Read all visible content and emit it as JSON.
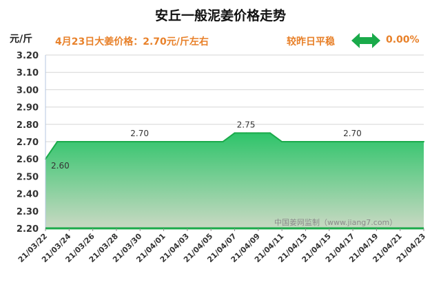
{
  "header": {
    "title": "安丘一般泥姜价格走势",
    "unit": "元/斤",
    "price_note": "4月23日大姜价格：2.70元/斤左右",
    "compare_label": "较昨日平稳",
    "change_value": "0.00%",
    "trend_icon": "double-arrow-icon",
    "trend_color": "#1aaa4a"
  },
  "watermark": "中国姜网监制（www.jiang7.com）",
  "chart_data": {
    "type": "area",
    "title": "安丘一般泥姜价格走势",
    "ylabel": "元/斤",
    "ylim": [
      2.2,
      3.2
    ],
    "yticks": [
      "2.20",
      "2.30",
      "2.40",
      "2.50",
      "2.60",
      "2.70",
      "2.80",
      "2.90",
      "3.00",
      "3.10",
      "3.20"
    ],
    "xticks": [
      "21/03/22",
      "21/03/24",
      "21/03/26",
      "21/03/28",
      "21/03/30",
      "21/04/01",
      "21/04/03",
      "21/04/05",
      "21/04/07",
      "21/04/09",
      "21/04/11",
      "21/04/13",
      "21/04/15",
      "21/04/17",
      "21/04/19",
      "21/04/21",
      "21/04/23"
    ],
    "x": [
      "21/03/22",
      "21/03/23",
      "21/03/24",
      "21/03/25",
      "21/03/26",
      "21/03/27",
      "21/03/28",
      "21/03/29",
      "21/03/30",
      "21/03/31",
      "21/04/01",
      "21/04/02",
      "21/04/03",
      "21/04/04",
      "21/04/05",
      "21/04/06",
      "21/04/07",
      "21/04/08",
      "21/04/09",
      "21/04/10",
      "21/04/11",
      "21/04/12",
      "21/04/13",
      "21/04/14",
      "21/04/15",
      "21/04/16",
      "21/04/17",
      "21/04/18",
      "21/04/19",
      "21/04/20",
      "21/04/21",
      "21/04/22",
      "21/04/23"
    ],
    "values": [
      2.6,
      2.7,
      2.7,
      2.7,
      2.7,
      2.7,
      2.7,
      2.7,
      2.7,
      2.7,
      2.7,
      2.7,
      2.7,
      2.7,
      2.7,
      2.7,
      2.75,
      2.75,
      2.75,
      2.75,
      2.7,
      2.7,
      2.7,
      2.7,
      2.7,
      2.7,
      2.7,
      2.7,
      2.7,
      2.7,
      2.7,
      2.7,
      2.7
    ],
    "annotations": [
      {
        "label": "2.60",
        "index": 0
      },
      {
        "label": "2.70",
        "index": 8
      },
      {
        "label": "2.75",
        "index": 17
      },
      {
        "label": "2.70",
        "index": 26
      }
    ],
    "grid": true,
    "fill_top_color": "#2ec46a",
    "fill_bottom_color": "#c9d9c3",
    "line_color": "#1aaa4a"
  }
}
